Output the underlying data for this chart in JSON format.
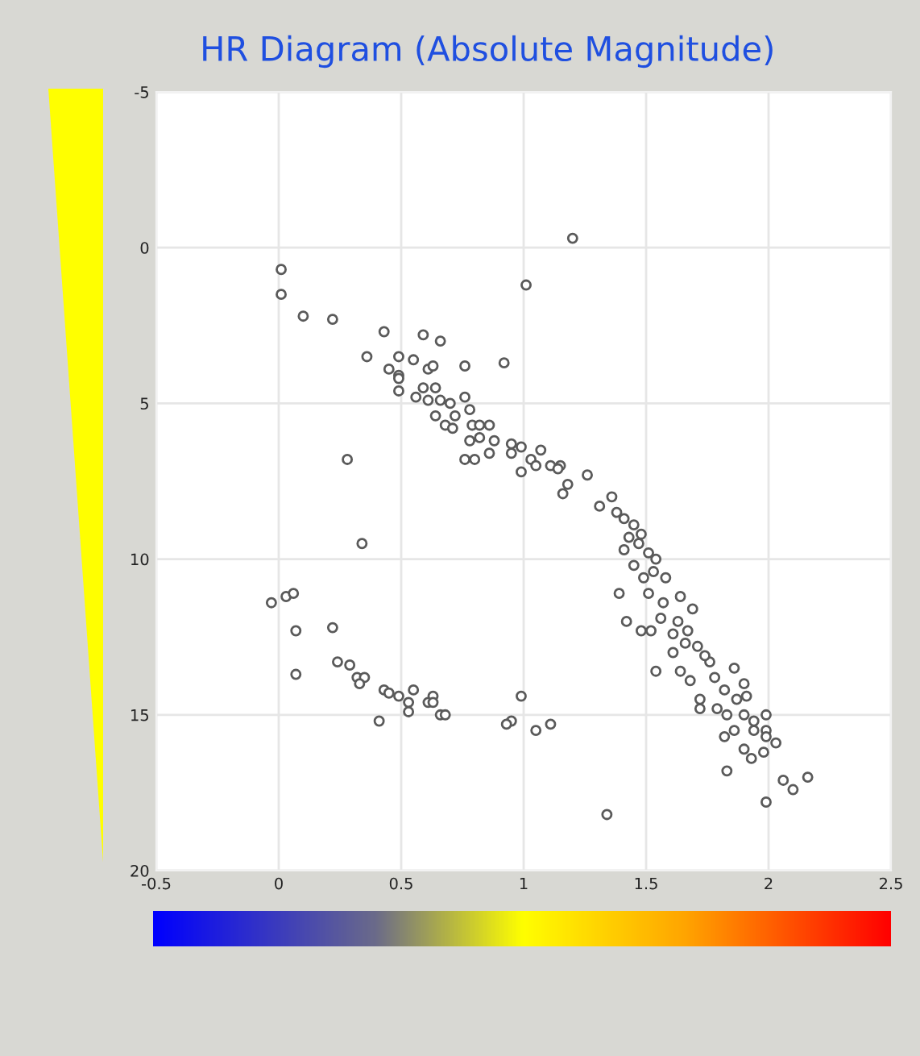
{
  "chart_data": {
    "type": "scatter",
    "title": "HR Diagram (Absolute Magnitude)",
    "xlim": [
      -0.5,
      2.5
    ],
    "xticks": [
      -0.5,
      0,
      0.5,
      1,
      1.5,
      2,
      2.5
    ],
    "ylim": [
      20,
      -5
    ],
    "yticks": [
      -5,
      0,
      5,
      10,
      15,
      20
    ],
    "grid": true,
    "marker": "circle",
    "series": [
      {
        "color": "#5a5a5a",
        "x": [
          0.01,
          0.01,
          0.1,
          0.22,
          0.43,
          0.59,
          0.66,
          0.36,
          0.49,
          0.55,
          0.45,
          0.49,
          0.49,
          0.49,
          0.61,
          0.63,
          0.76,
          0.92,
          1.2,
          1.01,
          0.28,
          0.64,
          0.59,
          0.56,
          0.61,
          0.66,
          0.7,
          0.76,
          0.78,
          0.64,
          0.72,
          0.68,
          0.71,
          0.79,
          0.82,
          0.86,
          0.88,
          0.78,
          0.82,
          0.86,
          0.76,
          0.8,
          0.95,
          0.99,
          1.07,
          0.95,
          1.03,
          1.05,
          0.99,
          1.11,
          1.15,
          1.18,
          1.16,
          1.26,
          1.14,
          1.31,
          1.36,
          1.38,
          1.41,
          1.45,
          1.43,
          1.48,
          1.41,
          1.51,
          1.45,
          1.54,
          1.49,
          1.58,
          1.39,
          1.51,
          1.64,
          1.69,
          1.42,
          1.48,
          1.52,
          1.56,
          1.61,
          1.67,
          1.71,
          1.61,
          1.54,
          1.64,
          1.76,
          1.68,
          1.78,
          1.86,
          1.9,
          1.82,
          1.72,
          1.72,
          1.79,
          1.83,
          1.87,
          1.91,
          1.9,
          1.94,
          1.99,
          1.99,
          1.94,
          1.82,
          1.86,
          1.99,
          2.03,
          1.9,
          1.93,
          1.98,
          1.83,
          2.06,
          2.1,
          2.16,
          1.99,
          1.34,
          0.34,
          -0.03,
          0.03,
          0.06,
          0.07,
          0.22,
          0.07,
          0.24,
          0.29,
          0.32,
          0.35,
          0.33,
          0.43,
          0.45,
          0.49,
          0.55,
          0.53,
          0.53,
          0.61,
          0.63,
          0.63,
          0.66,
          0.68,
          0.41,
          0.99,
          0.95,
          0.93,
          1.05,
          1.11,
          1.47,
          1.53,
          1.57,
          1.63,
          1.66,
          1.74
        ],
        "values": [
          0.7,
          1.5,
          2.2,
          2.3,
          2.7,
          2.8,
          3.0,
          3.5,
          3.5,
          3.6,
          3.9,
          4.1,
          4.2,
          4.6,
          3.9,
          3.8,
          3.8,
          3.7,
          -0.3,
          1.2,
          6.8,
          4.5,
          4.5,
          4.8,
          4.9,
          4.9,
          5.0,
          4.8,
          5.2,
          5.4,
          5.4,
          5.7,
          5.8,
          5.7,
          5.7,
          5.7,
          6.2,
          6.2,
          6.1,
          6.6,
          6.8,
          6.8,
          6.3,
          6.4,
          6.5,
          6.6,
          6.8,
          7.0,
          7.2,
          7.0,
          7.0,
          7.6,
          7.9,
          7.3,
          7.1,
          8.3,
          8.0,
          8.5,
          8.7,
          8.9,
          9.3,
          9.2,
          9.7,
          9.8,
          10.2,
          10.0,
          10.6,
          10.6,
          11.1,
          11.1,
          11.2,
          11.6,
          12.0,
          12.3,
          12.3,
          11.9,
          12.4,
          12.3,
          12.8,
          13.0,
          13.6,
          13.6,
          13.3,
          13.9,
          13.8,
          13.5,
          14.0,
          14.2,
          14.5,
          14.8,
          14.8,
          15.0,
          14.5,
          14.4,
          15.0,
          15.2,
          15.0,
          15.5,
          15.5,
          15.7,
          15.5,
          15.7,
          15.9,
          16.1,
          16.4,
          16.2,
          16.8,
          17.1,
          17.4,
          17.0,
          17.8,
          18.2,
          9.5,
          11.4,
          11.2,
          11.1,
          12.3,
          12.2,
          13.7,
          13.3,
          13.4,
          13.8,
          13.8,
          14.0,
          14.2,
          14.3,
          14.4,
          14.2,
          14.6,
          14.9,
          14.6,
          14.4,
          14.6,
          15.0,
          15.0,
          15.2,
          14.4,
          15.2,
          15.3,
          15.5,
          15.3,
          9.5,
          10.4,
          11.4,
          12.0,
          12.7,
          13.1
        ]
      }
    ]
  }
}
